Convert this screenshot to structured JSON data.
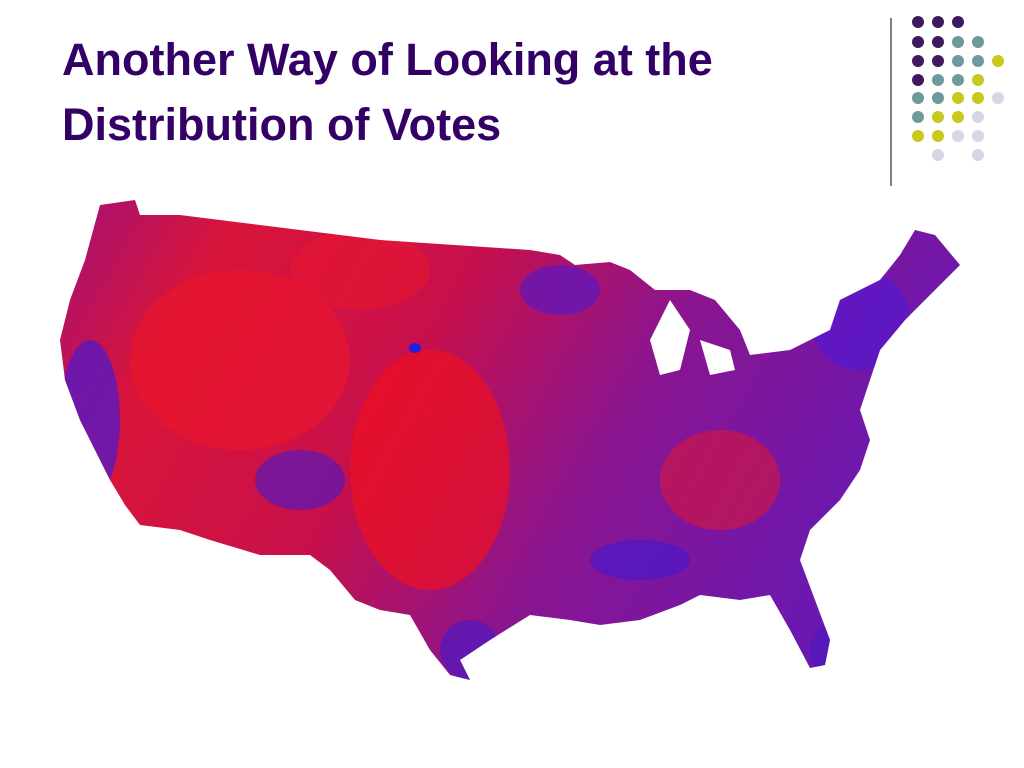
{
  "title_lines": [
    "Another Way of Looking at the",
    "Distribution of Votes"
  ]
}
